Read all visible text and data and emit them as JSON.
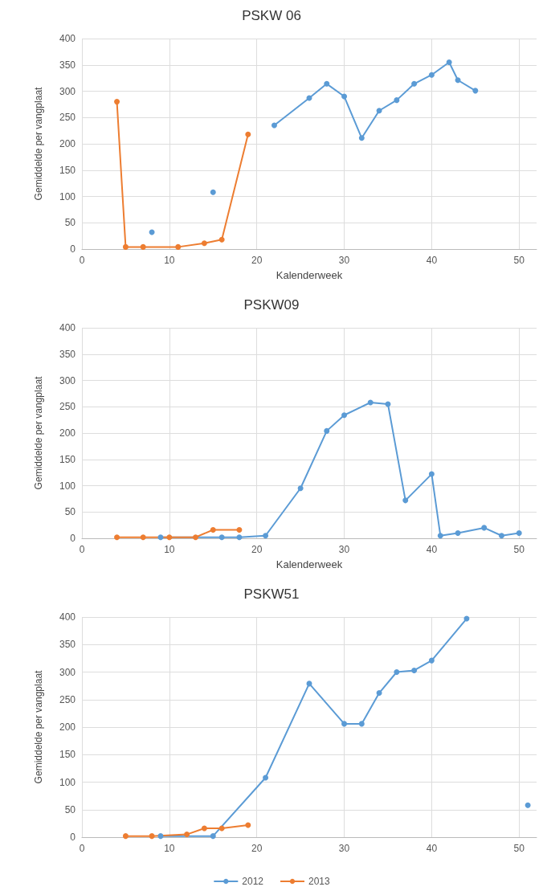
{
  "chart_data": [
    {
      "type": "line",
      "title": "PSKW 06",
      "xlabel": "Kalenderweek",
      "ylabel": "Gemiddelde per vangplaat",
      "xlim": [
        0,
        52
      ],
      "xticks": [
        0,
        10,
        20,
        30,
        40,
        50
      ],
      "ylim": [
        0,
        400
      ],
      "yticks": [
        0,
        50,
        100,
        150,
        200,
        250,
        300,
        350,
        400
      ],
      "grid": true,
      "legend": false,
      "marker": "circle",
      "series": [
        {
          "color": "#5b9bd5",
          "x": [
            8,
            12,
            15,
            18,
            22,
            26,
            28,
            30,
            32,
            34,
            36,
            38,
            40,
            42,
            43,
            45
          ],
          "values": [
            32,
            null,
            108,
            null,
            235,
            287,
            314,
            290,
            211,
            263,
            283,
            314,
            331,
            355,
            321,
            301
          ]
        },
        {
          "color": "#ed7d31",
          "x": [
            4,
            5,
            7,
            11,
            14,
            16,
            19
          ],
          "values": [
            280,
            4,
            4,
            4,
            11,
            18,
            218
          ]
        }
      ]
    },
    {
      "type": "line",
      "title": "PSKW09",
      "xlabel": "Kalenderweek",
      "ylabel": "Gemiddelde per vangplaat",
      "xlim": [
        0,
        52
      ],
      "xticks": [
        0,
        10,
        20,
        30,
        40,
        50
      ],
      "ylim": [
        0,
        400
      ],
      "yticks": [
        0,
        50,
        100,
        150,
        200,
        250,
        300,
        350,
        400
      ],
      "grid": true,
      "legend": false,
      "marker": "circle",
      "series": [
        {
          "color": "#5b9bd5",
          "x": [
            9,
            16,
            18,
            21,
            25,
            28,
            30,
            33,
            35,
            37,
            40,
            41,
            43,
            46,
            48,
            50
          ],
          "values": [
            2,
            2,
            2,
            5,
            95,
            204,
            234,
            258,
            255,
            72,
            122,
            5,
            10,
            20,
            5,
            10
          ]
        },
        {
          "color": "#ed7d31",
          "x": [
            4,
            7,
            10,
            13,
            15,
            18
          ],
          "values": [
            2,
            2,
            2,
            2,
            16,
            16
          ]
        }
      ]
    },
    {
      "type": "line",
      "title": "PSKW51",
      "ylabel": "Gemiddelde per vangplaat",
      "xlim": [
        0,
        52
      ],
      "xticks": [
        0,
        10,
        20,
        30,
        40,
        50
      ],
      "ylim": [
        0,
        400
      ],
      "yticks": [
        0,
        50,
        100,
        150,
        200,
        250,
        300,
        350,
        400
      ],
      "grid": true,
      "legend": "bottom",
      "marker": "circle",
      "series": [
        {
          "name": "2012",
          "color": "#5b9bd5",
          "x": [
            9,
            15,
            21,
            26,
            30,
            32,
            34,
            36,
            38,
            40,
            44,
            47,
            51
          ],
          "values": [
            2,
            2,
            108,
            279,
            206,
            206,
            262,
            300,
            303,
            321,
            397,
            null,
            58
          ]
        },
        {
          "name": "2013",
          "color": "#ed7d31",
          "x": [
            5,
            8,
            12,
            14,
            16,
            19
          ],
          "values": [
            2,
            2,
            5,
            16,
            16,
            22
          ]
        }
      ]
    }
  ]
}
